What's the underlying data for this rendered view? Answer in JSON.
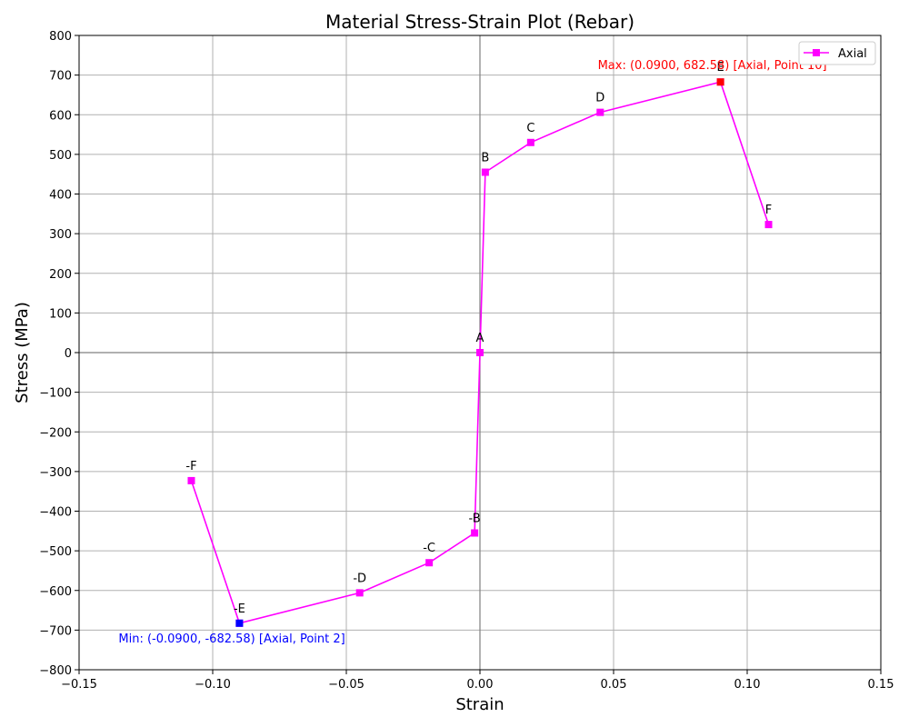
{
  "chart_data": {
    "type": "line",
    "title": "Material Stress-Strain Plot (Rebar)",
    "xlabel": "Strain",
    "ylabel": "Stress (MPa)",
    "xlim": [
      -0.15,
      0.15
    ],
    "ylim": [
      -800,
      800
    ],
    "xticks": [
      -0.15,
      -0.1,
      -0.05,
      0.0,
      0.05,
      0.1,
      0.15
    ],
    "xtick_labels": [
      "−0.15",
      "−0.10",
      "−0.05",
      "0.00",
      "0.05",
      "0.10",
      "0.15"
    ],
    "yticks": [
      -800,
      -700,
      -600,
      -500,
      -400,
      -300,
      -200,
      -100,
      0,
      100,
      200,
      300,
      400,
      500,
      600,
      700,
      800
    ],
    "ytick_labels": [
      "−800",
      "−700",
      "−600",
      "−500",
      "−400",
      "−300",
      "−200",
      "−100",
      "0",
      "100",
      "200",
      "300",
      "400",
      "500",
      "600",
      "700",
      "800"
    ],
    "grid": true,
    "legend": {
      "position": "top-right",
      "entries": [
        "Axial"
      ]
    },
    "series": [
      {
        "name": "Axial",
        "color": "#ff00ff",
        "marker": "square",
        "points": [
          {
            "x": -0.108,
            "y": -323.0,
            "label": "-F"
          },
          {
            "x": -0.09,
            "y": -682.58,
            "label": "-E"
          },
          {
            "x": -0.045,
            "y": -606.0,
            "label": "-D"
          },
          {
            "x": -0.019,
            "y": -530.0,
            "label": "-C"
          },
          {
            "x": -0.002,
            "y": -455.0,
            "label": "-B"
          },
          {
            "x": 0.0,
            "y": 0.0,
            "label": "A"
          },
          {
            "x": 0.002,
            "y": 455.0,
            "label": "B"
          },
          {
            "x": 0.019,
            "y": 530.0,
            "label": "C"
          },
          {
            "x": 0.045,
            "y": 606.0,
            "label": "D"
          },
          {
            "x": 0.09,
            "y": 682.58,
            "label": "E"
          },
          {
            "x": 0.108,
            "y": 323.0,
            "label": "F"
          }
        ]
      }
    ],
    "max_annotation": {
      "text": "Max: (0.0900, 682.58) [Axial, Point 10]",
      "x": 0.09,
      "y": 682.58,
      "color": "#ff0000"
    },
    "min_annotation": {
      "text": "Min: (-0.0900, -682.58) [Axial, Point 2]",
      "x": -0.09,
      "y": -682.58,
      "color": "#0000ff"
    }
  }
}
